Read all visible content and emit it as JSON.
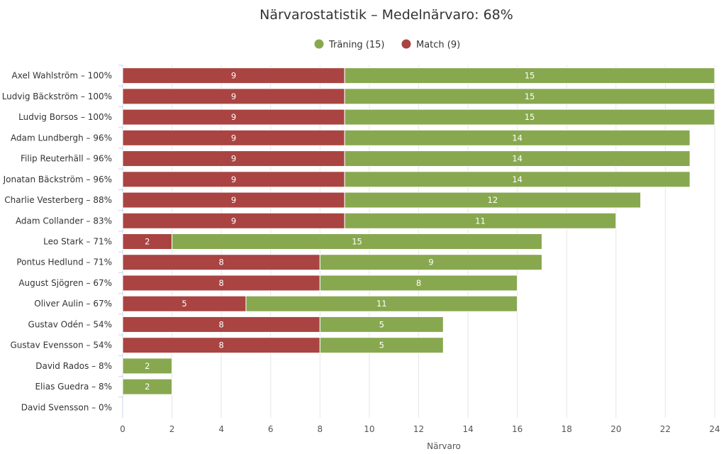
{
  "chart_data": {
    "type": "bar",
    "orientation": "horizontal",
    "stacked": true,
    "title": "Närvarostatistik – Medelnärvaro: 68%",
    "xlabel": "Närvaro",
    "ylabel": "",
    "xlim": [
      0,
      24
    ],
    "ticks": [
      "0",
      "2",
      "4",
      "6",
      "8",
      "10",
      "12",
      "14",
      "16",
      "18",
      "20",
      "22",
      "24"
    ],
    "legend_position": "top-center",
    "grid": true,
    "categories": [
      "Axel Wahlström – 100%",
      "Ludvig Bäckström – 100%",
      "Ludvig Borsos – 100%",
      "Adam Lundbergh – 96%",
      "Filip Reuterhäll – 96%",
      "Jonatan Bäckström – 96%",
      "Charlie Vesterberg – 88%",
      "Adam Collander – 83%",
      "Leo Stark – 71%",
      "Pontus Hedlund – 71%",
      "August Sjögren – 67%",
      "Oliver Aulin – 67%",
      "Gustav Odén – 54%",
      "Gustav Evensson – 54%",
      "David Rados – 8%",
      "Elias Guedra – 8%",
      "David Svensson – 0%"
    ],
    "series": [
      {
        "name": "Match (9)",
        "color": "#a94442",
        "values": [
          9,
          9,
          9,
          9,
          9,
          9,
          9,
          9,
          2,
          8,
          8,
          5,
          8,
          8,
          0,
          0,
          0
        ]
      },
      {
        "name": "Träning (15)",
        "color": "#88a84f",
        "values": [
          15,
          15,
          15,
          14,
          14,
          14,
          12,
          11,
          15,
          9,
          8,
          11,
          5,
          5,
          2,
          2,
          0
        ]
      }
    ],
    "legend_order": [
      "Träning (15)",
      "Match (9)"
    ]
  }
}
